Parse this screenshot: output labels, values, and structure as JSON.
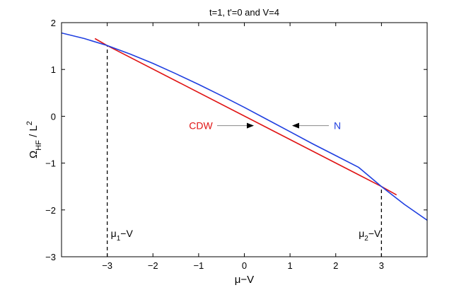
{
  "chart_data": {
    "type": "line",
    "title": "t=1, t'=0 and V=4",
    "xlabel": "μ−V",
    "ylabel": "Ω_HF / L^2",
    "ylabel_parts": {
      "omega": "Ω",
      "sub": "HF",
      "slash": " / L",
      "sup": "2"
    },
    "xlim": [
      -4,
      4
    ],
    "ylim": [
      -3,
      2
    ],
    "xticks": [
      -3,
      -2,
      -1,
      0,
      1,
      2,
      3
    ],
    "xtick_labels": [
      "−3",
      "−2",
      "−1",
      "0",
      "1",
      "2",
      "3"
    ],
    "yticks": [
      -3,
      -2,
      -1,
      0,
      1,
      2
    ],
    "ytick_labels": [
      "−3",
      "−2",
      "−1",
      "0",
      "1",
      "2"
    ],
    "grid": false,
    "series": [
      {
        "name": "N",
        "color": "#1f3fe0",
        "x": [
          -4,
          -3.5,
          -3,
          -2.5,
          -2,
          -1.5,
          -1,
          -0.5,
          0,
          0.5,
          1,
          1.5,
          2,
          2.5,
          3,
          3.5,
          4
        ],
        "y": [
          1.78,
          1.66,
          1.51,
          1.33,
          1.13,
          0.91,
          0.68,
          0.44,
          0.19,
          -0.07,
          -0.33,
          -0.59,
          -0.84,
          -1.09,
          -1.5,
          -1.88,
          -2.22
        ]
      },
      {
        "name": "CDW",
        "color": "#e01414",
        "x": [
          -3.27,
          -3,
          3,
          3.33
        ],
        "y": [
          1.66,
          1.51,
          -1.5,
          -1.68
        ]
      }
    ],
    "vlines": [
      {
        "x": -3,
        "y_from": -3,
        "y_to": 1.51,
        "style": "dashed",
        "label_main": "μ",
        "label_sub": "1",
        "label_tail": "−V"
      },
      {
        "x": 3,
        "y_from": -3,
        "y_to": -1.5,
        "style": "dashed",
        "label_main": "μ",
        "label_sub": "2",
        "label_tail": "−V"
      }
    ],
    "annotations": [
      {
        "text": "CDW",
        "color": "#e01414",
        "arrow_to": "right"
      },
      {
        "text": "N",
        "color": "#1f3fe0",
        "arrow_to": "left"
      }
    ]
  }
}
